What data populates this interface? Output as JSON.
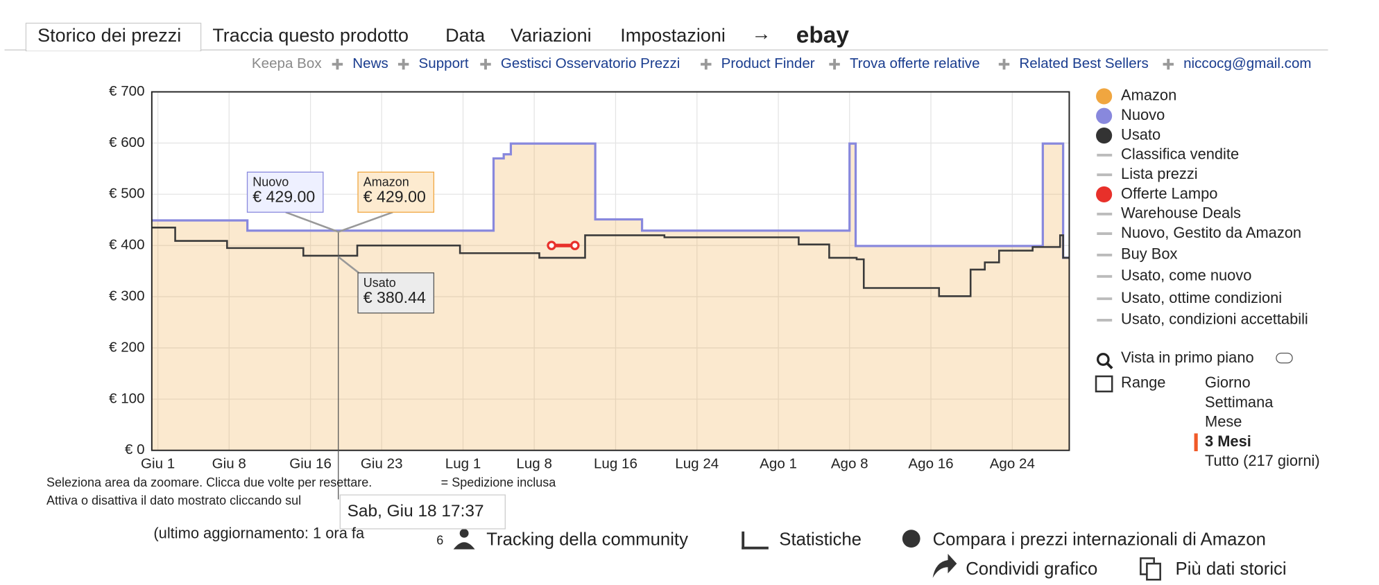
{
  "tabs": [
    "Storico dei prezzi",
    "Traccia questo prodotto",
    "Data",
    "Variazioni",
    "Impostazioni",
    "ebay"
  ],
  "links": [
    "Keepa Box",
    "News",
    "Support",
    "Gestisci Osservatorio Prezzi",
    "Product Finder",
    "Trova offerte relative",
    "Related Best Sellers",
    "niccocg@gmail.com"
  ],
  "chart_data": {
    "type": "step-line",
    "xlim": [
      -0.6,
      89.6
    ],
    "xticks": [
      {
        "value": 0,
        "label": "Giu 1"
      },
      {
        "value": 7,
        "label": "Giu 8"
      },
      {
        "value": 15,
        "label": "Giu 16"
      },
      {
        "value": 22,
        "label": "Giu 23"
      },
      {
        "value": 30,
        "label": "Lug 1"
      },
      {
        "value": 37,
        "label": "Lug 8"
      },
      {
        "value": 45,
        "label": "Lug 16"
      },
      {
        "value": 53,
        "label": "Lug 24"
      },
      {
        "value": 61,
        "label": "Ago 1"
      },
      {
        "value": 68,
        "label": "Ago 8"
      },
      {
        "value": 76,
        "label": "Ago 16"
      },
      {
        "value": 84,
        "label": "Ago 24"
      }
    ],
    "ylim": [
      0,
      700
    ],
    "yticks": [
      {
        "value": 0,
        "label": "€ 0"
      },
      {
        "value": 100,
        "label": "€ 100"
      },
      {
        "value": 200,
        "label": "€ 200"
      },
      {
        "value": 300,
        "label": "€ 300"
      },
      {
        "value": 400,
        "label": "€ 400"
      },
      {
        "value": 500,
        "label": "€ 500"
      },
      {
        "value": 600,
        "label": "€ 600"
      },
      {
        "value": 700,
        "label": "€ 700"
      }
    ],
    "grid": true,
    "series": [
      {
        "name": "Amazon",
        "color": "#f0a640",
        "style": "area",
        "x": [
          -0.6,
          8.8,
          33,
          34,
          34.7,
          43,
          47.6,
          68,
          68.6,
          87,
          89
        ],
        "values": [
          449,
          429,
          570,
          578,
          599,
          451,
          429,
          599,
          399,
          599,
          376
        ]
      },
      {
        "name": "Nuovo",
        "color": "#8888dd",
        "style": "line",
        "x": [
          -0.6,
          8.8,
          33,
          34,
          34.7,
          43,
          47.6,
          68,
          68.6,
          87,
          89
        ],
        "values": [
          449,
          429,
          570,
          578,
          599,
          451,
          429,
          599,
          399,
          599,
          376
        ]
      },
      {
        "name": "Usato",
        "color": "#3a3a3a",
        "style": "line",
        "x": [
          -0.6,
          1.7,
          6.8,
          14.3,
          19.6,
          29.7,
          37.5,
          42,
          49.8,
          63,
          66,
          68.7,
          69.4,
          76.8,
          79.9,
          81.3,
          82.7,
          86,
          88.7,
          89
        ],
        "values": [
          435,
          409,
          395,
          380,
          400,
          385,
          376,
          420,
          416,
          402,
          376,
          373,
          317,
          301,
          353,
          367,
          390,
          397,
          420,
          376
        ]
      },
      {
        "name": "Offerte Lampo",
        "color": "#e8302a",
        "style": "segment",
        "x": [
          38.7,
          41
        ],
        "values": [
          400,
          400
        ]
      }
    ],
    "legend_extra": [
      "Classifica vendite",
      "Lista prezzi",
      "Warehouse Deals",
      "Nuovo, Gestito da Amazon",
      "Buy Box",
      "Usato, come nuovo",
      "Usato, ottime condizioni",
      "Usato, condizioni accettabili"
    ],
    "tooltips": [
      {
        "name": "Nuovo",
        "label": "€ 429.00"
      },
      {
        "name": "Amazon",
        "label": "€ 429.00"
      },
      {
        "name": "Usato",
        "label": "€ 380.44"
      }
    ],
    "cursor_label": "Sab, Giu 18 17:37"
  },
  "controls": {
    "zoom": "Vista in primo piano",
    "range": "Range",
    "range_options": [
      "Giorno",
      "Settimana",
      "Mese",
      "3 Mesi",
      "Tutto (217 giorni)"
    ],
    "selected": 3
  },
  "notes": [
    "Seleziona area da zoomare. Clicca due volte per resettare.",
    "= Spedizione inclusa",
    "Attiva o disattiva il dato mostrato cliccando sul",
    "(ultimo aggiornamento: 1 ora fa"
  ],
  "footer": {
    "community_count": 6,
    "community": "Tracking della community",
    "stats": "Statistiche",
    "compare": "Compara i prezzi internazionali di Amazon",
    "share": "Condividi grafico",
    "history": "Più dati storici"
  }
}
